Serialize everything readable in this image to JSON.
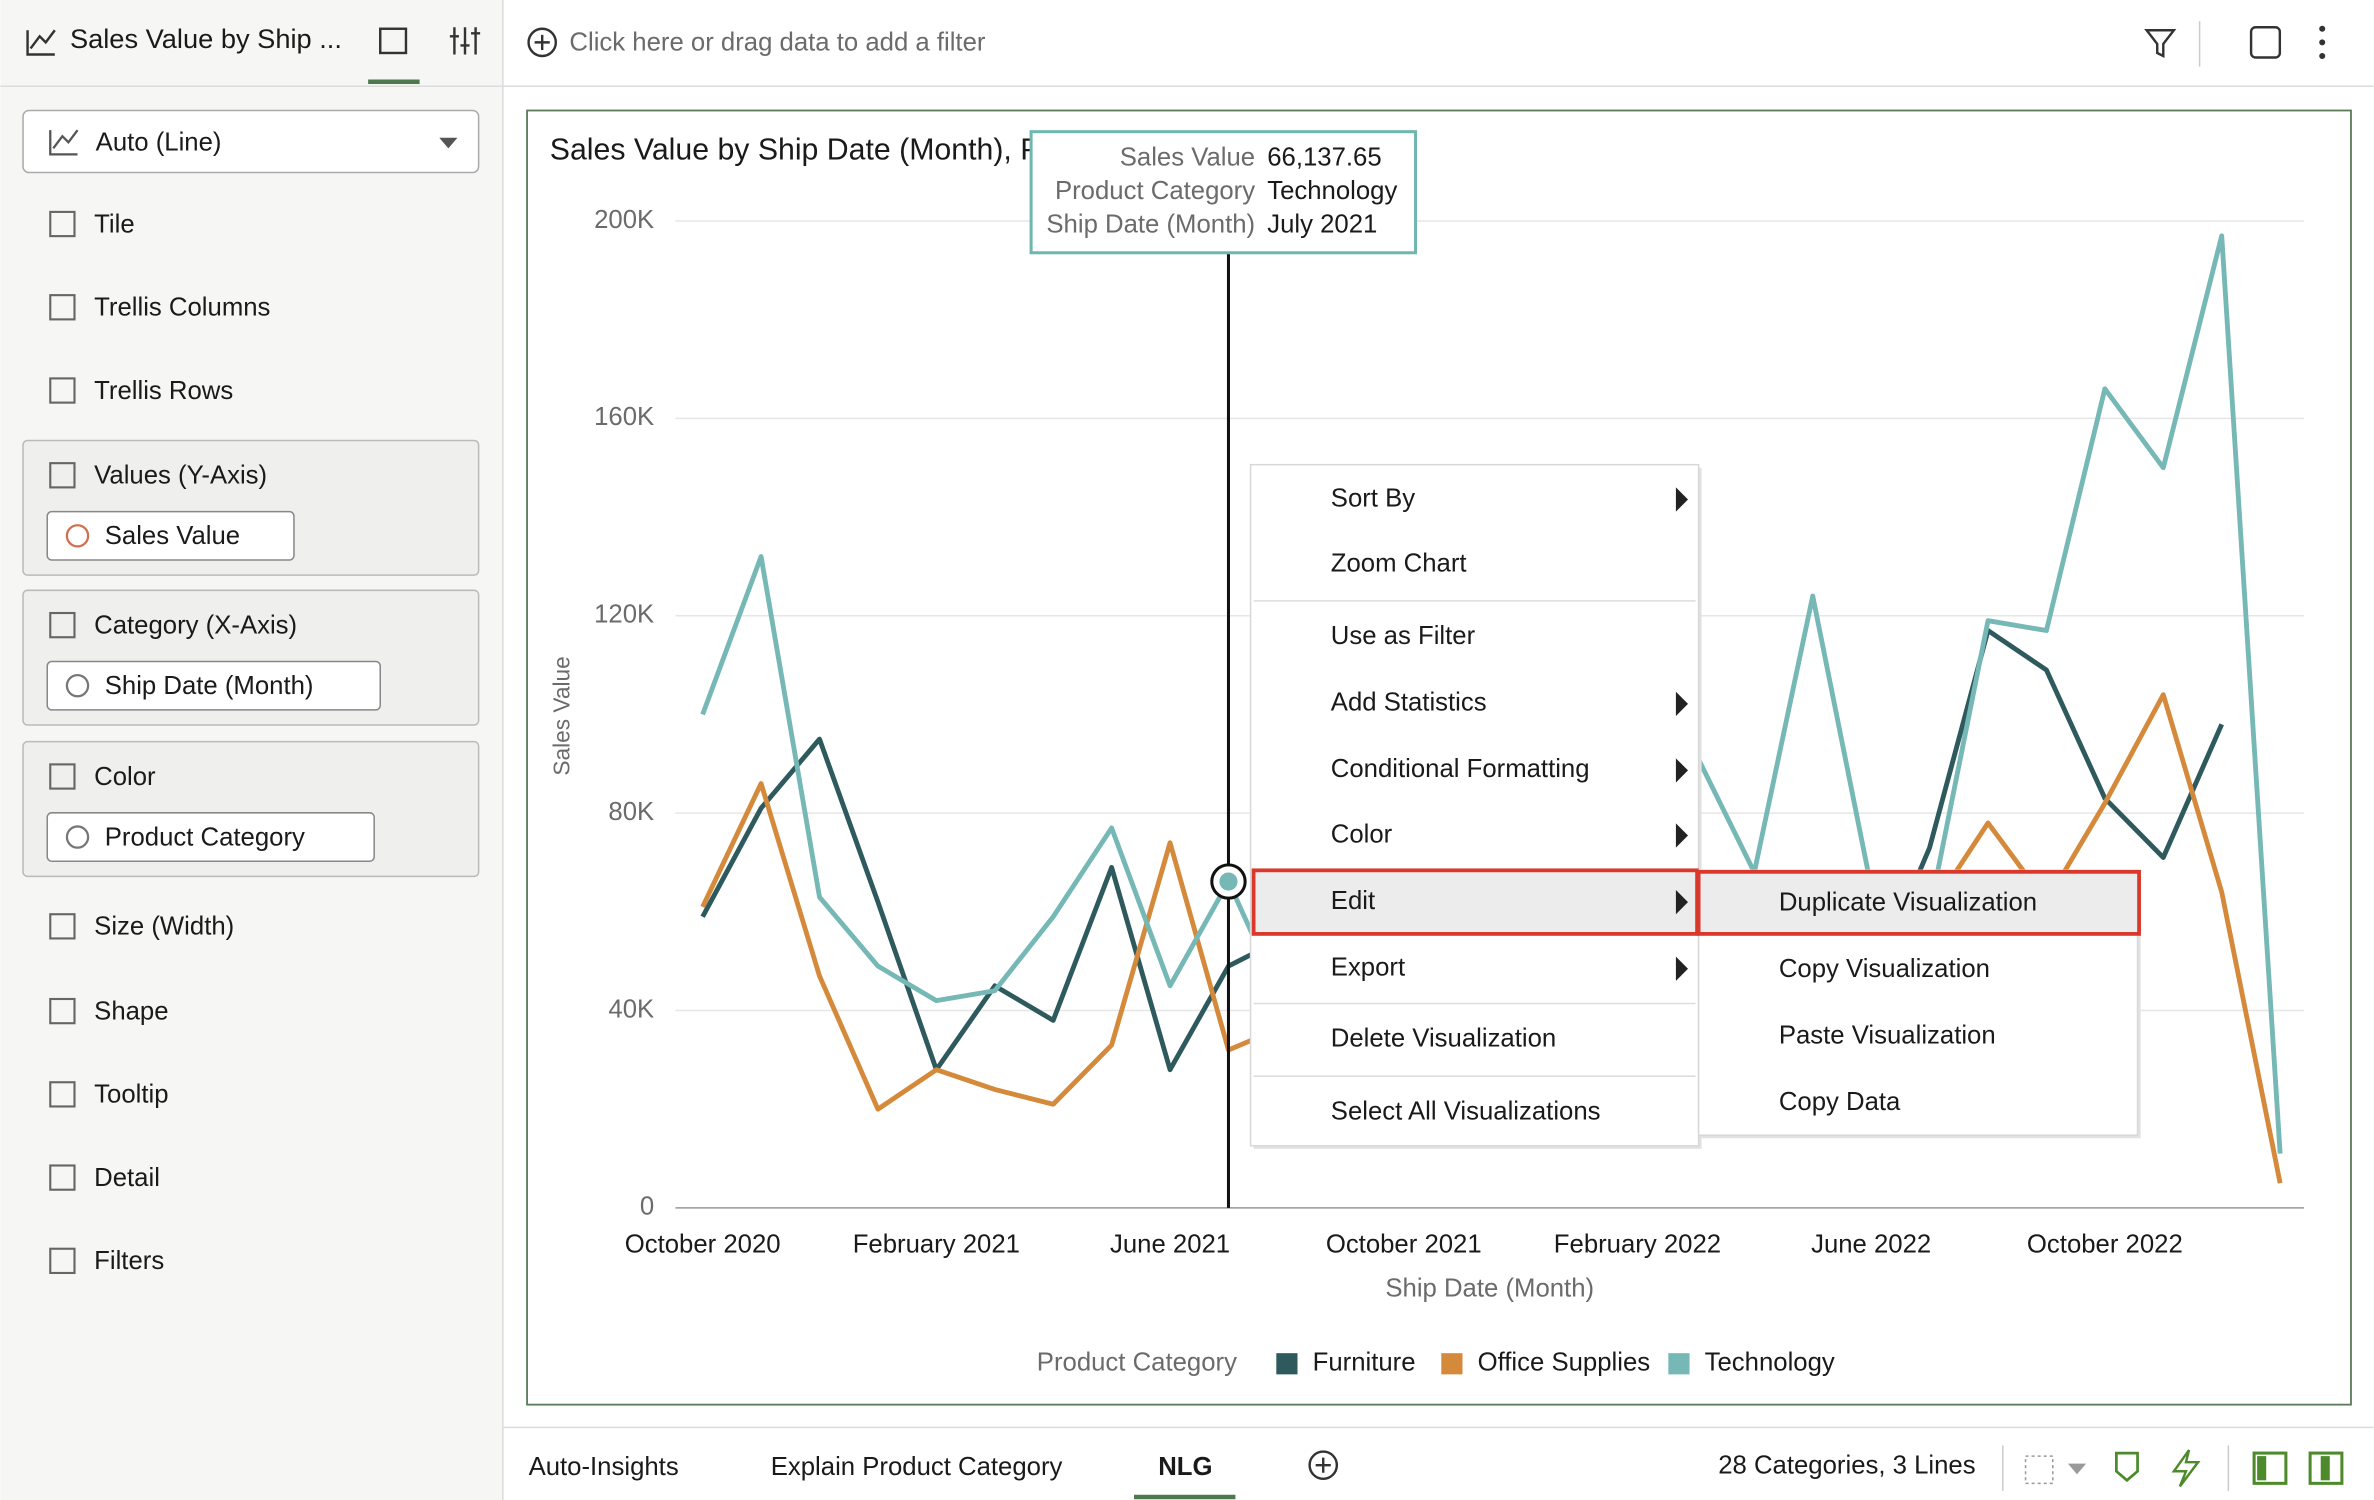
{
  "header": {
    "title": "Sales Value by Ship ...",
    "filter_hint": "Click here or drag data to add a filter"
  },
  "sidebar": {
    "chart_type": "Auto (Line)",
    "items": [
      {
        "label": "Tile"
      },
      {
        "label": "Trellis Columns"
      },
      {
        "label": "Trellis Rows"
      },
      {
        "label": "Values (Y-Axis)",
        "field": "Sales Value"
      },
      {
        "label": "Category (X-Axis)",
        "field": "Ship Date (Month)"
      },
      {
        "label": "Color",
        "field": "Product Category"
      },
      {
        "label": "Size (Width)"
      },
      {
        "label": "Shape"
      },
      {
        "label": "Tooltip"
      },
      {
        "label": "Detail"
      },
      {
        "label": "Filters"
      }
    ]
  },
  "chart_data": {
    "type": "line",
    "title": "Sales Value by Ship Date (Month), Product Category",
    "x_label": "Ship Date (Month)",
    "y_label": "Sales Value",
    "legend_title": "Product Category",
    "categories": [
      "October 2020",
      null,
      null,
      null,
      "February 2021",
      null,
      null,
      null,
      "June 2021",
      null,
      null,
      null,
      "October 2021",
      null,
      null,
      null,
      "February 2022",
      null,
      null,
      null,
      "June 2022",
      null,
      null,
      null,
      "October 2022",
      null,
      null,
      null
    ],
    "series": [
      {
        "name": "Furniture",
        "color": "#2e5a5e",
        "values": [
          59000,
          81000,
          95000,
          62000,
          28000,
          45000,
          38000,
          69000,
          28000,
          49000,
          55000,
          45000,
          60000,
          50000,
          65000,
          55000,
          70000,
          60000,
          50000,
          65000,
          45000,
          73000,
          117000,
          109000,
          83000,
          71000,
          98000,
          null
        ]
      },
      {
        "name": "Office Supplies",
        "color": "#d5893a",
        "values": [
          61000,
          86000,
          47000,
          20000,
          28000,
          24000,
          21000,
          33000,
          74000,
          32000,
          37000,
          30000,
          40000,
          35000,
          45000,
          38000,
          50000,
          42000,
          35000,
          48000,
          40000,
          60000,
          78000,
          62000,
          82000,
          104000,
          64000,
          5000
        ]
      },
      {
        "name": "Technology",
        "color": "#76b8b5",
        "values": [
          100000,
          132000,
          63000,
          49000,
          42000,
          44000,
          59000,
          77000,
          45000,
          66137.65,
          40000,
          55000,
          70000,
          60000,
          85000,
          65000,
          100000,
          92000,
          68000,
          124000,
          65000,
          60000,
          119000,
          117000,
          166000,
          150000,
          197000,
          11000
        ]
      }
    ],
    "ylim": [
      0,
      200000
    ],
    "yticks": [
      0,
      {
        "value": 40000,
        "label": "40K"
      },
      {
        "value": 80000,
        "label": "80K"
      },
      {
        "value": 120000,
        "label": "120K"
      },
      {
        "value": 160000,
        "label": "160K"
      },
      {
        "value": 200000,
        "label": "200K"
      }
    ],
    "grid": true,
    "legend": "bottom"
  },
  "tooltip": {
    "rows": [
      [
        "Sales Value",
        "66,137.65"
      ],
      [
        "Product Category",
        "Technology"
      ],
      [
        "Ship Date (Month)",
        "July 2021"
      ]
    ]
  },
  "context_menu": {
    "groups": [
      [
        {
          "label": "Sort By",
          "submenu": true
        },
        {
          "label": "Zoom Chart"
        }
      ],
      [
        {
          "label": "Use as Filter"
        },
        {
          "label": "Add Statistics",
          "submenu": true
        },
        {
          "label": "Conditional Formatting",
          "submenu": true
        },
        {
          "label": "Color",
          "submenu": true
        },
        {
          "label": "Edit",
          "submenu": true
        },
        {
          "label": "Export",
          "submenu": true
        }
      ],
      [
        {
          "label": "Delete Visualization"
        }
      ],
      [
        {
          "label": "Select All Visualizations"
        }
      ]
    ],
    "submenu": [
      "Duplicate Visualization",
      "Copy Visualization",
      "Paste Visualization",
      "Copy Data"
    ]
  },
  "footer": {
    "tabs": [
      "Auto-Insights",
      "Explain Product Category",
      "NLG"
    ],
    "status": "28 Categories, 3 Lines"
  }
}
